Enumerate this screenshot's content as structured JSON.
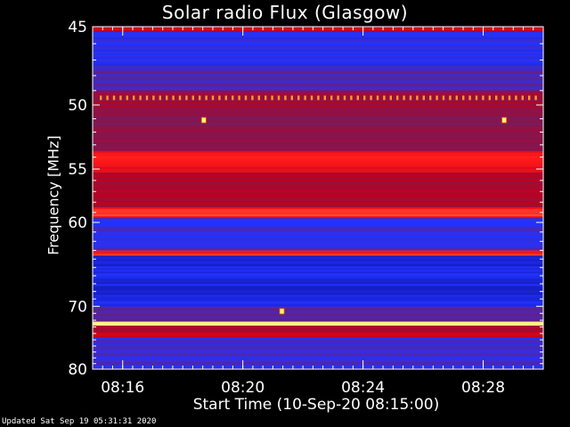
{
  "chart_data": {
    "type": "heatmap",
    "title": "Solar radio Flux (Glasgow)",
    "xlabel": "Start Time (10-Sep-20 08:15:00)",
    "ylabel": "Frequency [MHz]",
    "x_ticks": [
      "08:16",
      "08:20",
      "08:24",
      "08:28"
    ],
    "x_tick_minutes": [
      1,
      5,
      9,
      13
    ],
    "xlim_minutes": [
      0,
      15
    ],
    "y_ticks": [
      45,
      50,
      55,
      60,
      70,
      80
    ],
    "ylim": [
      45,
      80
    ],
    "y_scale": "reciprocal",
    "colormap": [
      "#0b0b8f",
      "#2233ff",
      "#7a1a5a",
      "#c0001a",
      "#ff1a1a",
      "#ffff80"
    ],
    "bands": [
      {
        "f_min": 45.0,
        "f_max": 45.3,
        "level": 0.65
      },
      {
        "f_min": 45.3,
        "f_max": 47.5,
        "level": 0.22
      },
      {
        "f_min": 47.5,
        "f_max": 49.0,
        "level": 0.3
      },
      {
        "f_min": 49.0,
        "f_max": 50.3,
        "level": 0.5
      },
      {
        "f_min": 50.3,
        "f_max": 53.5,
        "level": 0.45
      },
      {
        "f_min": 53.5,
        "f_max": 55.3,
        "level": 0.75
      },
      {
        "f_min": 55.3,
        "f_max": 58.5,
        "level": 0.55
      },
      {
        "f_min": 58.5,
        "f_max": 59.5,
        "level": 0.8
      },
      {
        "f_min": 59.5,
        "f_max": 63.0,
        "level": 0.25
      },
      {
        "f_min": 63.0,
        "f_max": 63.6,
        "level": 0.82
      },
      {
        "f_min": 63.6,
        "f_max": 70.0,
        "level": 0.15
      },
      {
        "f_min": 70.0,
        "f_max": 72.2,
        "level": 0.3
      },
      {
        "f_min": 72.2,
        "f_max": 72.8,
        "level": 1.0
      },
      {
        "f_min": 72.8,
        "f_max": 73.8,
        "level": 0.5
      },
      {
        "f_min": 73.8,
        "f_max": 74.6,
        "level": 0.62
      },
      {
        "f_min": 74.6,
        "f_max": 80.0,
        "level": 0.25
      }
    ],
    "bursts": [
      {
        "minute": 3.7,
        "freq": 51.1
      },
      {
        "minute": 13.7,
        "freq": 51.1
      },
      {
        "minute": 6.3,
        "freq": 70.7
      }
    ],
    "comb_line_freq": 49.5
  },
  "footer": {
    "updated": "Updated Sat Sep 19 05:31:31 2020"
  }
}
